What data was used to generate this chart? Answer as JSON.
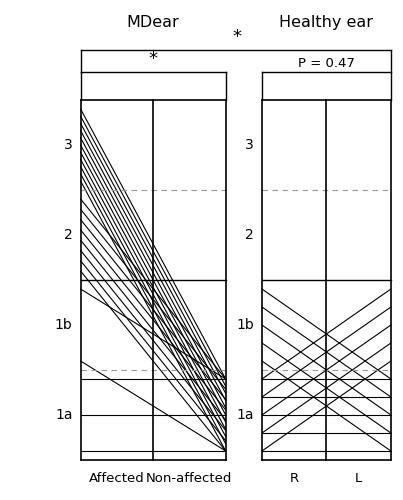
{
  "title_left": "MDear",
  "title_right": "Healthy ear",
  "col_labels_left": [
    "Affected",
    "Non-affected"
  ],
  "col_labels_right": [
    "R",
    "L"
  ],
  "row_labels": [
    "1a",
    "1b",
    "2",
    "3"
  ],
  "md_connections": [
    {
      "from": 3,
      "to": 0,
      "count": 11
    },
    {
      "from": 2,
      "to": 0,
      "count": 8
    },
    {
      "from": 1,
      "to": 0,
      "count": 2
    },
    {
      "from": 0,
      "to": 0,
      "count": 3
    }
  ],
  "healthy_connections": [
    {
      "from": 1,
      "to": 0,
      "count": 5
    },
    {
      "from": 0,
      "to": 1,
      "count": 5
    },
    {
      "from": 0,
      "to": 0,
      "count": 5
    }
  ],
  "figsize": [
    4.03,
    5.0
  ],
  "dpi": 100,
  "line_lw": 0.8,
  "border_lw": 1.2
}
